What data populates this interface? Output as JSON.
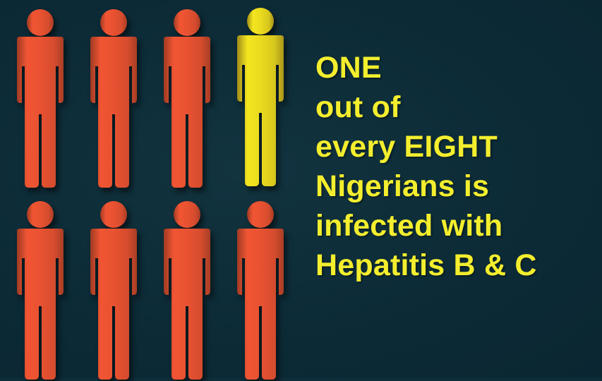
{
  "colors": {
    "background": "#0e2d3a",
    "infected": "#f3e61f",
    "not_infected": "#f15533",
    "text": "#f3ee2e"
  },
  "ratio": {
    "highlighted": 1,
    "total": 8
  },
  "figures": [
    {
      "status": "not-infected"
    },
    {
      "status": "not-infected"
    },
    {
      "status": "not-infected"
    },
    {
      "status": "infected"
    },
    {
      "status": "not-infected"
    },
    {
      "status": "not-infected"
    },
    {
      "status": "not-infected"
    },
    {
      "status": "not-infected"
    }
  ],
  "message": {
    "lines": [
      "ONE",
      "out of",
      "every EIGHT",
      "Nigerians is",
      "infected with",
      "Hepatitis B & C"
    ]
  }
}
